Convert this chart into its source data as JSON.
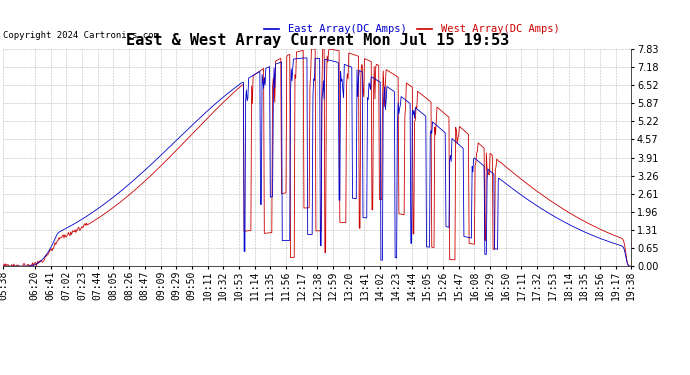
{
  "title": "East & West Array Current Mon Jul 15 19:53",
  "copyright": "Copyright 2024 Cartronics.com",
  "legend_east": "East Array(DC Amps)",
  "legend_west": "West Array(DC Amps)",
  "east_color": "#0000cc",
  "west_color": "#cc0000",
  "bg_color": "#ffffff",
  "grid_color": "#bbbbbb",
  "yticks": [
    0.0,
    0.65,
    1.31,
    1.96,
    2.61,
    3.26,
    3.91,
    4.57,
    5.22,
    5.87,
    6.52,
    7.18,
    7.83
  ],
  "ymin": 0.0,
  "ymax": 7.83,
  "title_fontsize": 11,
  "label_fontsize": 7.5,
  "tick_fontsize": 7,
  "copyright_fontsize": 6.5,
  "x_labels": [
    "05:38",
    "06:20",
    "06:41",
    "07:02",
    "07:23",
    "07:44",
    "08:05",
    "08:26",
    "08:47",
    "09:09",
    "09:29",
    "09:50",
    "10:11",
    "10:32",
    "10:53",
    "11:14",
    "11:35",
    "11:56",
    "12:17",
    "12:38",
    "12:59",
    "13:20",
    "13:41",
    "14:02",
    "14:23",
    "14:44",
    "15:05",
    "15:26",
    "15:47",
    "16:08",
    "16:29",
    "16:50",
    "17:11",
    "17:32",
    "17:53",
    "18:14",
    "18:35",
    "18:56",
    "19:17",
    "19:38"
  ]
}
